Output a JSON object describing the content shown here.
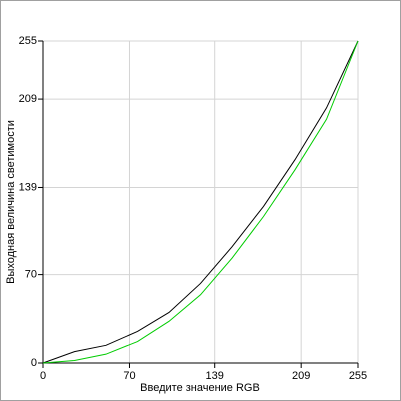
{
  "chart_data": {
    "type": "line",
    "x_label": "Введите значение RGB",
    "y_label": "Выходная величина светимости",
    "x": [
      0,
      25.5,
      51,
      76.5,
      102,
      127.5,
      153,
      178.5,
      204,
      229.5,
      255
    ],
    "series": [
      {
        "color": "#000000",
        "values": [
          0,
          9,
          14,
          25,
          40,
          63,
          92,
          124,
          161,
          202,
          255
        ]
      },
      {
        "color": "#00cc00",
        "values": [
          0,
          2,
          7,
          17,
          33,
          54,
          83,
          116,
          153,
          193,
          255
        ]
      }
    ],
    "xlim": [
      0,
      255
    ],
    "ylim": [
      0,
      255
    ],
    "xticks": [
      0,
      70,
      139,
      209,
      255
    ],
    "yticks": [
      0,
      70,
      139,
      209,
      255
    ],
    "grid": true
  }
}
